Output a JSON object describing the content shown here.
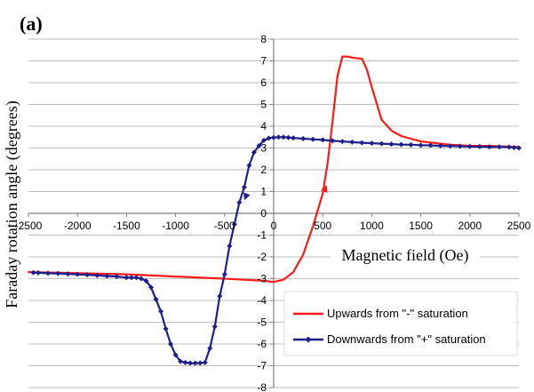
{
  "chart_data": {
    "type": "line",
    "panel_label": "(a)",
    "title": "",
    "xlabel": "Magnetic field (Oe)",
    "ylabel": "Faraday rotation angle (degrees)",
    "xlim": [
      -2500,
      2500
    ],
    "ylim": [
      -8,
      8
    ],
    "x_ticks": [
      -2500,
      -2000,
      -1500,
      -1000,
      -500,
      0,
      500,
      1000,
      1500,
      2000,
      2500
    ],
    "x_tick_labels": [
      "-2500",
      "-2000",
      "-1500",
      "-1000",
      "-500",
      "0",
      "500",
      "1000",
      "1500",
      "2000",
      "2500"
    ],
    "y_ticks": [
      -8,
      -7,
      -6,
      -5,
      -4,
      -3,
      -2,
      -1,
      0,
      1,
      2,
      3,
      4,
      5,
      6,
      7,
      8
    ],
    "y_tick_labels": [
      "-8",
      "-7",
      "-6",
      "-5",
      "-4",
      "-3",
      "-2",
      "-1",
      "0",
      "1",
      "2",
      "3",
      "4",
      "5",
      "6",
      "7",
      "8"
    ],
    "grid": true,
    "legend_position": "lower-right",
    "series": [
      {
        "name": "Upwards from \"-\" saturation",
        "color": "#ff1a1a",
        "marker": "none",
        "x": [
          -2500,
          -2000,
          -1500,
          -1000,
          -500,
          -100,
          0,
          100,
          200,
          300,
          400,
          500,
          550,
          600,
          650,
          700,
          750,
          800,
          900,
          950,
          1000,
          1100,
          1200,
          1300,
          1500,
          1800,
          2000,
          2200,
          2500
        ],
        "y": [
          -2.7,
          -2.75,
          -2.8,
          -2.9,
          -3.0,
          -3.1,
          -3.15,
          -3.05,
          -2.7,
          -1.9,
          -0.6,
          0.9,
          2.3,
          4.2,
          6.3,
          7.2,
          7.2,
          7.15,
          7.1,
          6.6,
          5.8,
          4.3,
          3.8,
          3.55,
          3.3,
          3.15,
          3.1,
          3.1,
          3.05
        ]
      },
      {
        "name": "Downwards from \"+\" saturation",
        "color": "#1f1f8c",
        "marker": "diamond",
        "x": [
          -2450,
          -2400,
          -2300,
          -2200,
          -2100,
          -2000,
          -1900,
          -1800,
          -1700,
          -1600,
          -1500,
          -1450,
          -1400,
          -1350,
          -1300,
          -1250,
          -1200,
          -1150,
          -1100,
          -1050,
          -1000,
          -950,
          -900,
          -850,
          -800,
          -750,
          -700,
          -650,
          -600,
          -550,
          -500,
          -450,
          -400,
          -350,
          -300,
          -250,
          -200,
          -150,
          -100,
          -50,
          0,
          50,
          100,
          150,
          200,
          300,
          400,
          500,
          600,
          700,
          800,
          900,
          1000,
          1100,
          1200,
          1300,
          1400,
          1500,
          1600,
          1700,
          1800,
          1900,
          2000,
          2100,
          2200,
          2300,
          2400,
          2450,
          2500
        ],
        "y": [
          -2.72,
          -2.73,
          -2.75,
          -2.76,
          -2.78,
          -2.8,
          -2.82,
          -2.85,
          -2.88,
          -2.9,
          -2.95,
          -2.95,
          -2.95,
          -3.0,
          -3.1,
          -3.4,
          -3.95,
          -4.5,
          -5.3,
          -6.0,
          -6.5,
          -6.8,
          -6.85,
          -6.88,
          -6.88,
          -6.87,
          -6.85,
          -6.2,
          -5.2,
          -3.8,
          -2.8,
          -1.5,
          -0.5,
          0.5,
          1.2,
          2.2,
          2.8,
          3.1,
          3.35,
          3.45,
          3.48,
          3.5,
          3.5,
          3.48,
          3.46,
          3.43,
          3.4,
          3.37,
          3.33,
          3.3,
          3.27,
          3.24,
          3.22,
          3.2,
          3.18,
          3.16,
          3.15,
          3.13,
          3.12,
          3.1,
          3.09,
          3.08,
          3.07,
          3.06,
          3.05,
          3.05,
          3.04,
          3.02,
          3.0
        ]
      }
    ]
  }
}
